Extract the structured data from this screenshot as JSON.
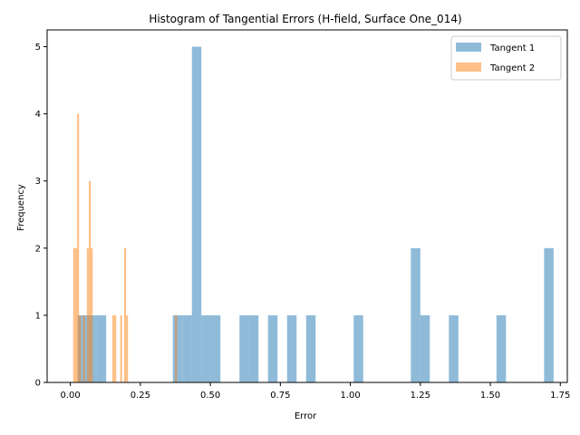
{
  "chart_data": {
    "type": "histogram",
    "title": "Histogram of Tangential Errors (H-field, Surface One_014)",
    "xlabel": "Error",
    "ylabel": "Frequency",
    "xlim": [
      -0.083,
      1.775
    ],
    "ylim": [
      0,
      5.25
    ],
    "xticks": [
      0.0,
      0.25,
      0.5,
      0.75,
      1.0,
      1.25,
      1.5,
      1.75
    ],
    "xtick_labels": [
      "0.00",
      "0.25",
      "0.50",
      "0.75",
      "1.00",
      "1.25",
      "1.50",
      "1.75"
    ],
    "yticks": [
      0,
      1,
      2,
      3,
      4,
      5
    ],
    "ytick_labels": [
      "0",
      "1",
      "2",
      "3",
      "4",
      "5"
    ],
    "grid": false,
    "legend_position": "top-right",
    "series": [
      {
        "name": "Tangent 1",
        "color": "#1f77b4",
        "opacity": 0.5,
        "bins": [
          {
            "x0": 0.026,
            "x1": 0.06,
            "count": 1
          },
          {
            "x0": 0.06,
            "x1": 0.094,
            "count": 1
          },
          {
            "x0": 0.094,
            "x1": 0.128,
            "count": 1
          },
          {
            "x0": 0.366,
            "x1": 0.4,
            "count": 1
          },
          {
            "x0": 0.4,
            "x1": 0.434,
            "count": 1
          },
          {
            "x0": 0.434,
            "x1": 0.468,
            "count": 5
          },
          {
            "x0": 0.468,
            "x1": 0.502,
            "count": 1
          },
          {
            "x0": 0.502,
            "x1": 0.536,
            "count": 1
          },
          {
            "x0": 0.604,
            "x1": 0.638,
            "count": 1
          },
          {
            "x0": 0.638,
            "x1": 0.672,
            "count": 1
          },
          {
            "x0": 0.706,
            "x1": 0.74,
            "count": 1
          },
          {
            "x0": 0.774,
            "x1": 0.808,
            "count": 1
          },
          {
            "x0": 0.842,
            "x1": 0.876,
            "count": 1
          },
          {
            "x0": 1.012,
            "x1": 1.046,
            "count": 1
          },
          {
            "x0": 1.216,
            "x1": 1.25,
            "count": 2
          },
          {
            "x0": 1.25,
            "x1": 1.284,
            "count": 1
          },
          {
            "x0": 1.352,
            "x1": 1.386,
            "count": 1
          },
          {
            "x0": 1.522,
            "x1": 1.556,
            "count": 1
          },
          {
            "x0": 1.692,
            "x1": 1.726,
            "count": 2
          }
        ]
      },
      {
        "name": "Tangent 2",
        "color": "#ff7f0e",
        "opacity": 0.5,
        "bins": [
          {
            "x0": 0.01,
            "x1": 0.017,
            "count": 2
          },
          {
            "x0": 0.017,
            "x1": 0.024,
            "count": 2
          },
          {
            "x0": 0.024,
            "x1": 0.031,
            "count": 4
          },
          {
            "x0": 0.031,
            "x1": 0.038,
            "count": 1
          },
          {
            "x0": 0.045,
            "x1": 0.052,
            "count": 1
          },
          {
            "x0": 0.059,
            "x1": 0.066,
            "count": 2
          },
          {
            "x0": 0.066,
            "x1": 0.073,
            "count": 3
          },
          {
            "x0": 0.073,
            "x1": 0.08,
            "count": 2
          },
          {
            "x0": 0.15,
            "x1": 0.157,
            "count": 1
          },
          {
            "x0": 0.157,
            "x1": 0.164,
            "count": 1
          },
          {
            "x0": 0.178,
            "x1": 0.185,
            "count": 1
          },
          {
            "x0": 0.192,
            "x1": 0.199,
            "count": 2
          },
          {
            "x0": 0.199,
            "x1": 0.206,
            "count": 1
          },
          {
            "x0": 0.374,
            "x1": 0.381,
            "count": 1
          }
        ]
      }
    ]
  }
}
